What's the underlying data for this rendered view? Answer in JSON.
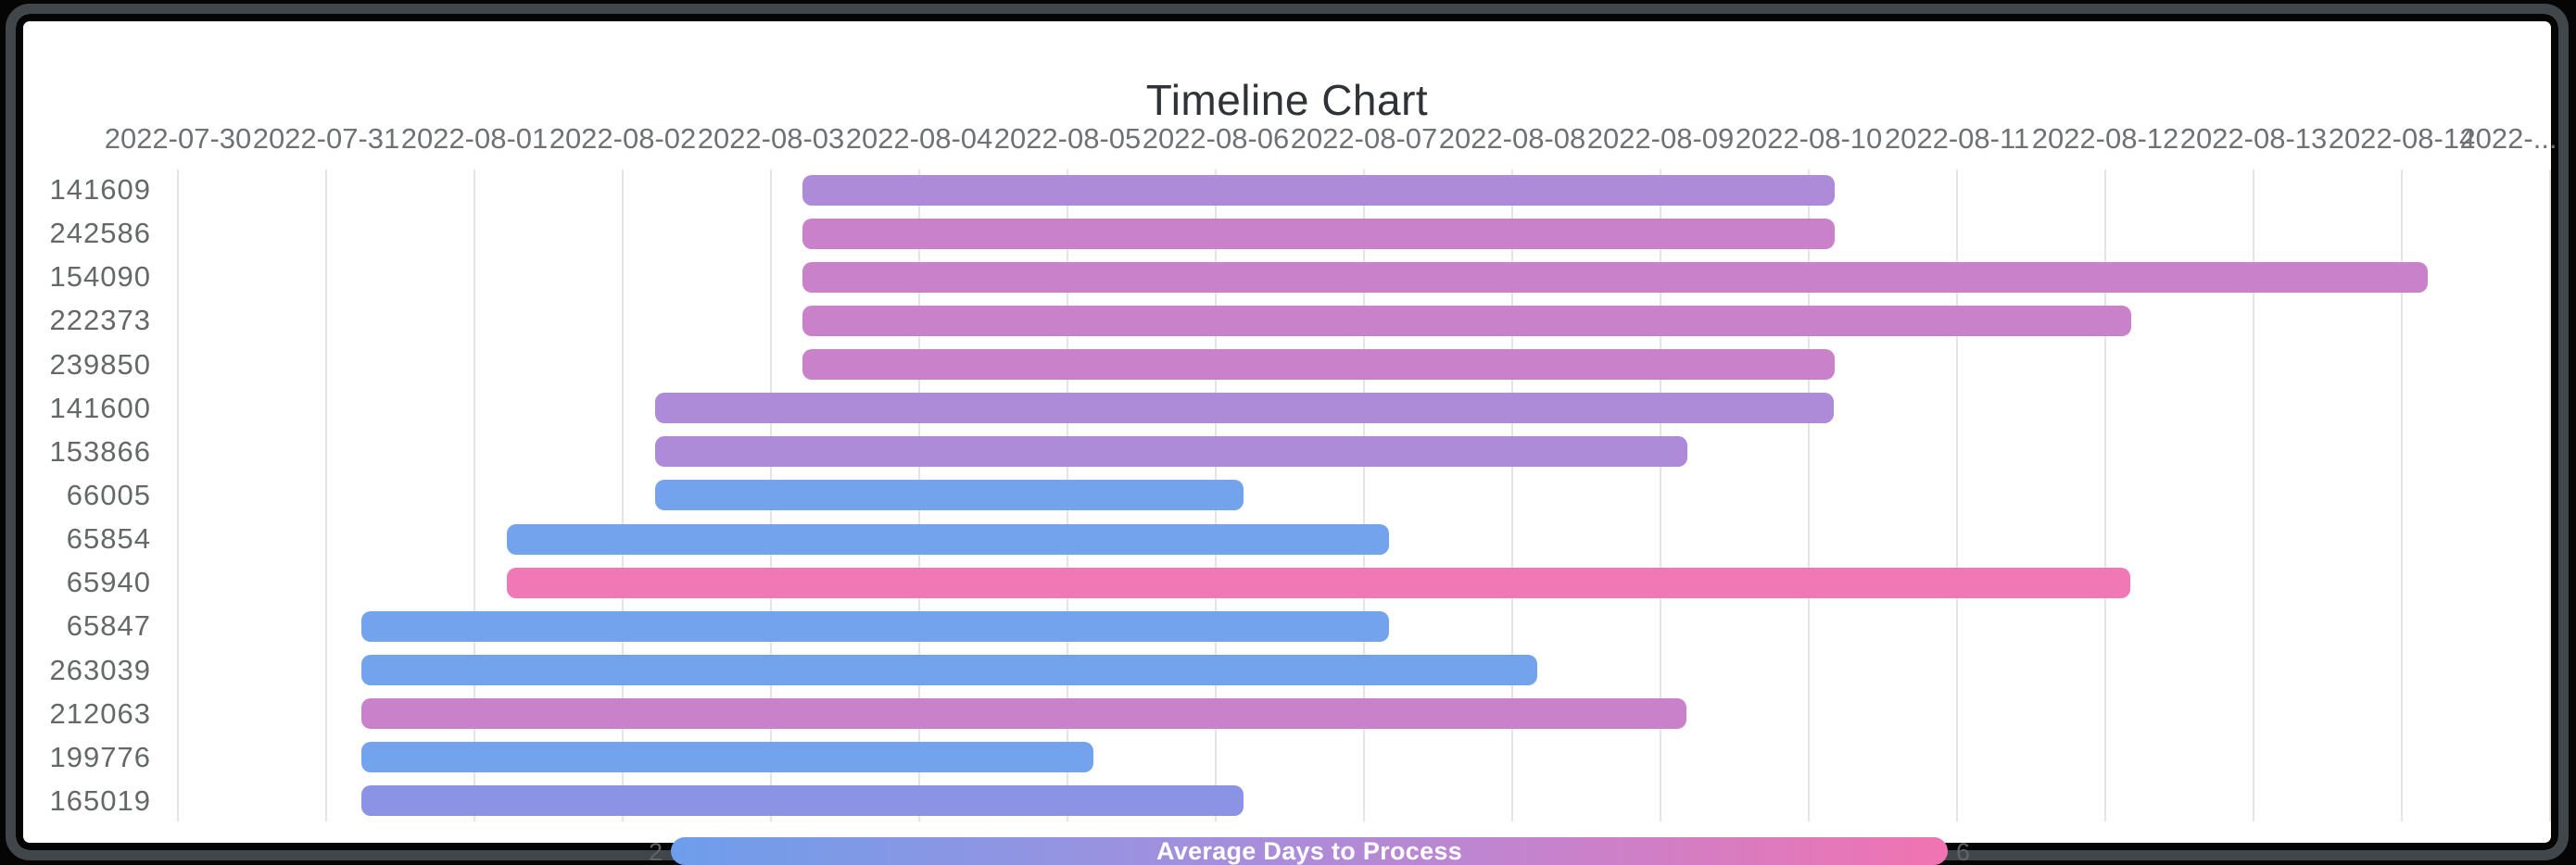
{
  "window": {
    "outer_frame_color": "#050505",
    "bezel_color": "#41464b",
    "card_color": "#ffffff"
  },
  "chart_data": {
    "type": "timeline",
    "title": "Timeline Chart",
    "grid": true,
    "x_axis": {
      "start_date": "2022-07-30",
      "days_per_tick": 1,
      "tick_labels": [
        "2022-07-30",
        "2022-07-31",
        "2022-08-01",
        "2022-08-02",
        "2022-08-03",
        "2022-08-04",
        "2022-08-05",
        "2022-08-06",
        "2022-08-07",
        "2022-08-08",
        "2022-08-09",
        "2022-08-10",
        "2022-08-11",
        "2022-08-12",
        "2022-08-13",
        "2022-08-14",
        "2022-..."
      ]
    },
    "rows": [
      {
        "label": "141609",
        "start": "2022-08-03",
        "end": "2022-08-10",
        "duration_days": 7,
        "start_day": 4.21,
        "end_day": 11.17,
        "color": "#ad8bd9",
        "avg_days_to_process": 4
      },
      {
        "label": "242586",
        "start": "2022-08-03",
        "end": "2022-08-10",
        "duration_days": 7,
        "start_day": 4.21,
        "end_day": 11.17,
        "color": "#c982c9",
        "avg_days_to_process": 5
      },
      {
        "label": "154090",
        "start": "2022-08-03",
        "end": "2022-08-14",
        "duration_days": 11,
        "start_day": 4.21,
        "end_day": 15.17,
        "color": "#c982c9",
        "avg_days_to_process": 5
      },
      {
        "label": "222373",
        "start": "2022-08-03",
        "end": "2022-08-12",
        "duration_days": 9,
        "start_day": 4.21,
        "end_day": 13.17,
        "color": "#c982c9",
        "avg_days_to_process": 5
      },
      {
        "label": "239850",
        "start": "2022-08-03",
        "end": "2022-08-10",
        "duration_days": 7,
        "start_day": 4.21,
        "end_day": 11.17,
        "color": "#c982c9",
        "avg_days_to_process": 5
      },
      {
        "label": "141600",
        "start": "2022-08-02",
        "end": "2022-08-10",
        "duration_days": 8,
        "start_day": 3.22,
        "end_day": 11.17,
        "color": "#ad8bd9",
        "avg_days_to_process": 4
      },
      {
        "label": "153866",
        "start": "2022-08-02",
        "end": "2022-08-09",
        "duration_days": 7,
        "start_day": 3.22,
        "end_day": 10.18,
        "color": "#ad8bd9",
        "avg_days_to_process": 4
      },
      {
        "label": "66005",
        "start": "2022-08-02",
        "end": "2022-08-06",
        "duration_days": 4,
        "start_day": 3.22,
        "end_day": 7.19,
        "color": "#74a3ee",
        "avg_days_to_process": 2
      },
      {
        "label": "65854",
        "start": "2022-08-01",
        "end": "2022-08-07",
        "duration_days": 6,
        "start_day": 2.22,
        "end_day": 8.17,
        "color": "#74a3ee",
        "avg_days_to_process": 2
      },
      {
        "label": "65940",
        "start": "2022-08-01",
        "end": "2022-08-12",
        "duration_days": 11,
        "start_day": 2.22,
        "end_day": 13.17,
        "color": "#f078b4",
        "avg_days_to_process": 6
      },
      {
        "label": "65847",
        "start": "2022-07-31",
        "end": "2022-08-07",
        "duration_days": 7,
        "start_day": 1.24,
        "end_day": 8.17,
        "color": "#74a3ee",
        "avg_days_to_process": 2
      },
      {
        "label": "263039",
        "start": "2022-07-31",
        "end": "2022-08-08",
        "duration_days": 8,
        "start_day": 1.24,
        "end_day": 9.17,
        "color": "#74a3ee",
        "avg_days_to_process": 2
      },
      {
        "label": "212063",
        "start": "2022-07-31",
        "end": "2022-08-09",
        "duration_days": 9,
        "start_day": 1.24,
        "end_day": 10.18,
        "color": "#c982c9",
        "avg_days_to_process": 5
      },
      {
        "label": "199776",
        "start": "2022-07-31",
        "end": "2022-08-05",
        "duration_days": 5,
        "start_day": 1.24,
        "end_day": 6.18,
        "color": "#74a3ee",
        "avg_days_to_process": 2
      },
      {
        "label": "165019",
        "start": "2022-07-31",
        "end": "2022-08-06",
        "duration_days": 6,
        "start_day": 1.24,
        "end_day": 7.19,
        "color": "#8b93e5",
        "avg_days_to_process": 3
      }
    ],
    "legend": {
      "title": "Average Days to Process",
      "min": "2",
      "max": "6",
      "gradient_start_color": "#6d9eeb",
      "gradient_end_color": "#f173b1",
      "position": "bottom"
    }
  }
}
